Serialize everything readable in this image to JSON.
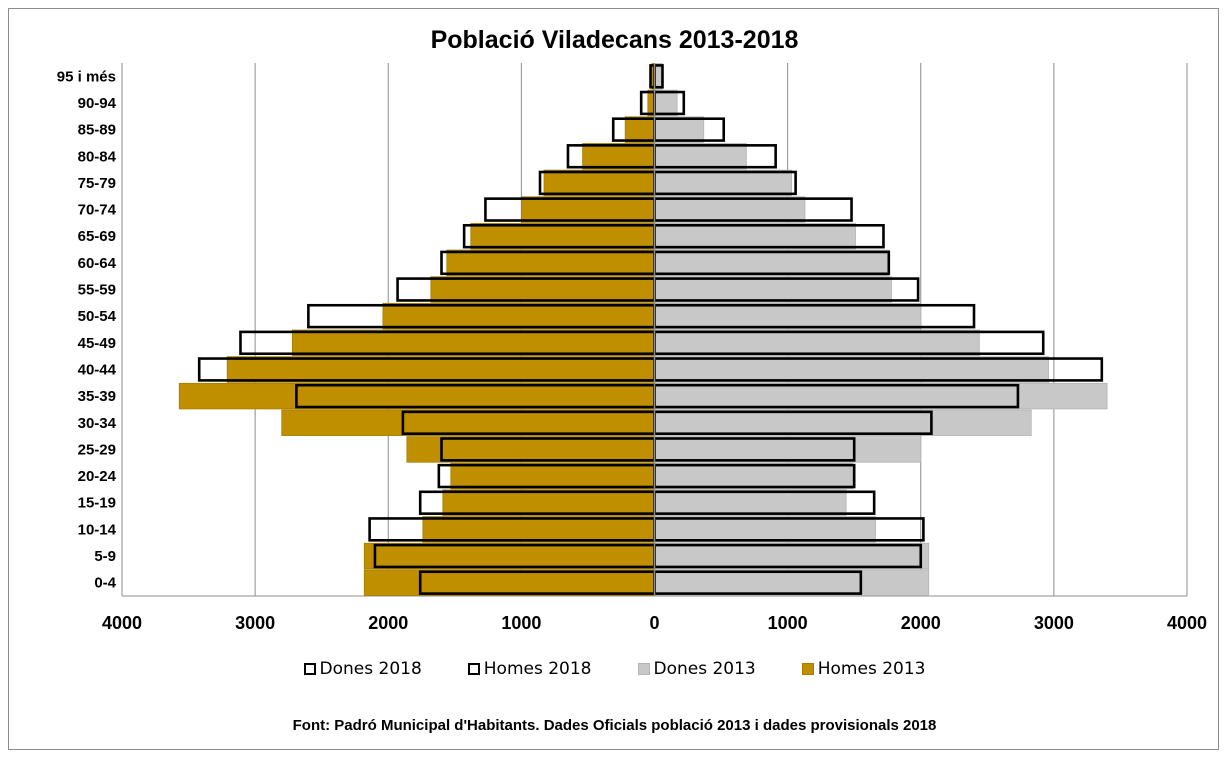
{
  "chart_data": {
    "type": "bar",
    "orientation": "horizontal",
    "title": "Població Viladecans 2013-2018",
    "categories": [
      "0-4",
      "5-9",
      "10-14",
      "15-19",
      "20-24",
      "25-29",
      "30-34",
      "35-39",
      "40-44",
      "45-49",
      "50-54",
      "55-59",
      "60-64",
      "65-69",
      "70-74",
      "75-79",
      "80-84",
      "85-89",
      "90-94",
      "95 i més"
    ],
    "xlim": [
      -4000,
      4000
    ],
    "xticks": [
      -4000,
      -3000,
      -2000,
      -1000,
      0,
      1000,
      2000,
      3000,
      4000
    ],
    "xtick_labels": [
      "4000",
      "3000",
      "2000",
      "1000",
      "0",
      "1000",
      "2000",
      "3000",
      "4000"
    ],
    "grid": true,
    "legend_position": "bottom",
    "series": [
      {
        "name": "Dones 2018",
        "side": "right",
        "style": "outline",
        "color": "#000000",
        "values": [
          1550,
          2000,
          2020,
          1650,
          1500,
          1500,
          2080,
          2730,
          3360,
          2920,
          2400,
          1980,
          1760,
          1720,
          1480,
          1060,
          910,
          520,
          220,
          60
        ]
      },
      {
        "name": "Homes 2018",
        "side": "left",
        "style": "outline",
        "color": "#000000",
        "values": [
          1760,
          2100,
          2140,
          1760,
          1620,
          1600,
          1890,
          2690,
          3420,
          3110,
          2600,
          1930,
          1600,
          1430,
          1270,
          860,
          650,
          310,
          100,
          30
        ]
      },
      {
        "name": "Dones 2013",
        "side": "right",
        "style": "filled",
        "color": "#c8c8c8",
        "values": [
          2060,
          2060,
          1660,
          1440,
          1490,
          2000,
          2830,
          3400,
          2960,
          2440,
          2000,
          1780,
          1760,
          1510,
          1130,
          1030,
          690,
          370,
          170,
          60
        ]
      },
      {
        "name": "Homes 2013",
        "side": "left",
        "style": "filled",
        "color": "#bf8f00",
        "values": [
          2180,
          2180,
          1740,
          1590,
          1530,
          1860,
          2800,
          3570,
          3210,
          2720,
          2040,
          1680,
          1560,
          1380,
          1000,
          830,
          540,
          220,
          50,
          20
        ]
      }
    ]
  },
  "source_note": "Font: Padró Municipal d'Habitants. Dades Oficials població 2013 i dades provisionals 2018"
}
